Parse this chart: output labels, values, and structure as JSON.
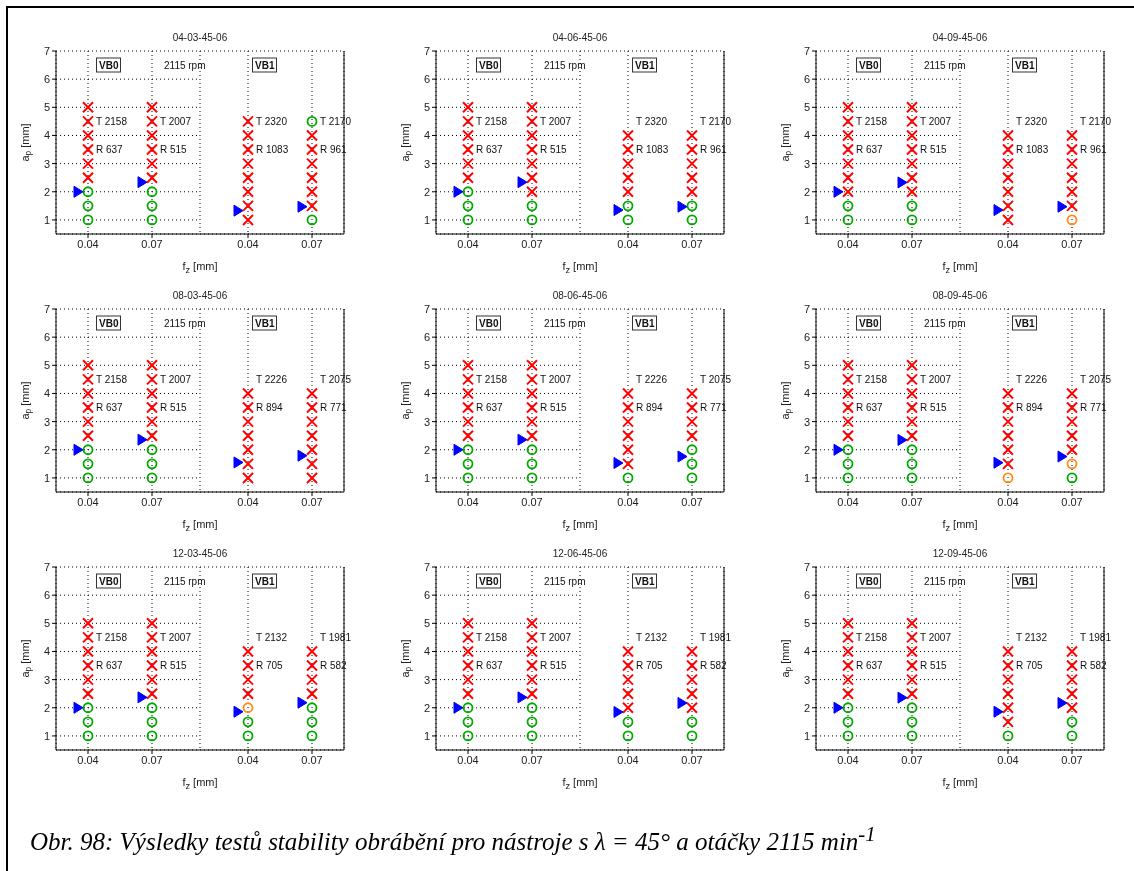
{
  "chart_data": [
    {
      "type": "scatter",
      "title": "04-03-45-06",
      "xlabel": "f$_{z}$ [mm]",
      "ylabel": "a$_{p}$ [mm]",
      "categories": [
        "0.04",
        "0.07"
      ],
      "ylim": [
        0.5,
        7
      ],
      "yticks": [
        1,
        2,
        3,
        4,
        5,
        6,
        7
      ],
      "grid": true,
      "series": [
        {
          "color": "#ff0000",
          "marker": "cross",
          "x": [
            "0.04",
            "0.04",
            "0.04",
            "0.04",
            "0.04",
            "0.04",
            "0.07",
            "0.07",
            "0.07",
            "0.07",
            "0.07",
            "0.07"
          ],
          "values": [
            2.5,
            3,
            3.5,
            4,
            4.5,
            5,
            2.5,
            3,
            3.5,
            4,
            4.5,
            5
          ]
        },
        {
          "color": "#00aa00",
          "marker": "circle",
          "x": [
            "0.04",
            "0.04",
            "0.04",
            "0.07",
            "0.07",
            "0.07"
          ],
          "values": [
            1,
            1.5,
            2,
            1,
            1.5,
            2
          ]
        },
        {
          "color": "#0000ff",
          "marker": "triangle",
          "x": [
            "0.04",
            "0.07"
          ],
          "values": [
            2,
            2.34
          ]
        }
      ],
      "annotations": [
        "VB0",
        "2115 rpm",
        "T 2158",
        "R 637",
        "T 2007",
        "R 515"
      ]
    },
    {
      "type": "scatter",
      "categories": [
        "0.04",
        "0.07"
      ],
      "ylim": [
        0.5,
        7
      ],
      "yticks": [
        1,
        2,
        3,
        4,
        5,
        6,
        7
      ],
      "tick_labels": "x",
      "grid": true,
      "series": [
        {
          "color": "#ff0000",
          "marker": "cross",
          "x": [
            "0.04",
            "0.04",
            "0.04",
            "0.04",
            "0.04",
            "0.04",
            "0.04",
            "0.04",
            "0.07",
            "0.07",
            "0.07",
            "0.07",
            "0.07",
            "0.07"
          ],
          "values": [
            1,
            1.5,
            2,
            2.5,
            3,
            3.5,
            4,
            4.5,
            1.5,
            2,
            2.5,
            3,
            3.5,
            4
          ]
        },
        {
          "color": "#00aa00",
          "marker": "circle",
          "x": [
            "0.07",
            "0.07"
          ],
          "values": [
            1,
            4.5
          ]
        },
        {
          "color": "#0000ff",
          "marker": "triangle",
          "x": [
            "0.04",
            "0.07"
          ],
          "values": [
            1.33,
            1.47
          ]
        }
      ],
      "annotations": [
        "VB1",
        "T 2320",
        "R 1083",
        "T 2170",
        "R 961"
      ]
    },
    {
      "type": "scatter",
      "title": "04-06-45-06",
      "xlabel": "f$_{z}$ [mm]",
      "ylabel": "a$_{p}$ [mm]",
      "categories": [
        "0.04",
        "0.07"
      ],
      "ylim": [
        0.5,
        7
      ],
      "yticks": [
        1,
        2,
        3,
        4,
        5,
        6,
        7
      ],
      "grid": true,
      "series": [
        {
          "color": "#ff0000",
          "marker": "cross",
          "x": [
            "0.04",
            "0.04",
            "0.04",
            "0.04",
            "0.04",
            "0.04",
            "0.07",
            "0.07",
            "0.07",
            "0.07",
            "0.07",
            "0.07",
            "0.07"
          ],
          "values": [
            2.5,
            3,
            3.5,
            4,
            4.5,
            5,
            2,
            2.5,
            3,
            3.5,
            4,
            4.5,
            5
          ]
        },
        {
          "color": "#00aa00",
          "marker": "circle",
          "x": [
            "0.04",
            "0.04",
            "0.04",
            "0.07",
            "0.07"
          ],
          "values": [
            1,
            1.5,
            2,
            1,
            1.5
          ]
        },
        {
          "color": "#0000ff",
          "marker": "triangle",
          "x": [
            "0.04",
            "0.07"
          ],
          "values": [
            2,
            2.34
          ]
        }
      ],
      "annotations": [
        "VB0",
        "2115 rpm",
        "T 2158",
        "R 637",
        "T 2007",
        "R 515"
      ]
    },
    {
      "type": "scatter",
      "categories": [
        "0.04",
        "0.07"
      ],
      "ylim": [
        0.5,
        7
      ],
      "yticks": [
        1,
        2,
        3,
        4,
        5,
        6,
        7
      ],
      "tick_labels": "x",
      "grid": true,
      "series": [
        {
          "color": "#ff0000",
          "marker": "cross",
          "x": [
            "0.04",
            "0.04",
            "0.04",
            "0.04",
            "0.04",
            "0.07",
            "0.07",
            "0.07",
            "0.07",
            "0.07"
          ],
          "values": [
            2,
            2.5,
            3,
            3.5,
            4,
            2,
            2.5,
            3,
            3.5,
            4
          ]
        },
        {
          "color": "#00aa00",
          "marker": "circle",
          "x": [
            "0.04",
            "0.04",
            "0.07",
            "0.07"
          ],
          "values": [
            1,
            1.5,
            1,
            1.5
          ]
        },
        {
          "color": "#0000ff",
          "marker": "triangle",
          "x": [
            "0.04",
            "0.07"
          ],
          "values": [
            1.35,
            1.47
          ]
        }
      ],
      "annotations": [
        "VB1",
        "T 2320",
        "R 1083",
        "T 2170",
        "R 961"
      ]
    },
    {
      "type": "scatter",
      "title": "04-09-45-06",
      "xlabel": "f$_{z}$ [mm]",
      "ylabel": "a$_{p}$ [mm]",
      "categories": [
        "0.04",
        "0.07"
      ],
      "ylim": [
        0.5,
        7
      ],
      "yticks": [
        1,
        2,
        3,
        4,
        5,
        6,
        7
      ],
      "grid": true,
      "series": [
        {
          "color": "#ff0000",
          "marker": "cross",
          "x": [
            "0.04",
            "0.04",
            "0.04",
            "0.04",
            "0.04",
            "0.04",
            "0.04",
            "0.07",
            "0.07",
            "0.07",
            "0.07",
            "0.07",
            "0.07",
            "0.07"
          ],
          "values": [
            2,
            2.5,
            3,
            3.5,
            4,
            4.5,
            5,
            2,
            2.5,
            3,
            3.5,
            4,
            4.5,
            5
          ]
        },
        {
          "color": "#00aa00",
          "marker": "circle",
          "x": [
            "0.04",
            "0.04",
            "0.07",
            "0.07"
          ],
          "values": [
            1,
            1.5,
            1,
            1.5
          ]
        },
        {
          "color": "#0000ff",
          "marker": "triangle",
          "x": [
            "0.04",
            "0.07"
          ],
          "values": [
            2,
            2.33
          ]
        }
      ],
      "annotations": [
        "VB0",
        "2115 rpm",
        "T 2158",
        "R 637",
        "T 2007",
        "R 515"
      ]
    },
    {
      "type": "scatter",
      "categories": [
        "0.04",
        "0.07"
      ],
      "ylim": [
        0.5,
        7
      ],
      "yticks": [
        1,
        2,
        3,
        4,
        5,
        6,
        7
      ],
      "tick_labels": "x",
      "grid": true,
      "series": [
        {
          "color": "#ff0000",
          "marker": "cross",
          "x": [
            "0.04",
            "0.04",
            "0.04",
            "0.04",
            "0.04",
            "0.04",
            "0.04",
            "0.07",
            "0.07",
            "0.07",
            "0.07",
            "0.07",
            "0.07"
          ],
          "values": [
            1,
            1.5,
            2,
            2.5,
            3,
            3.5,
            4,
            1.5,
            2,
            2.5,
            3,
            3.5,
            4
          ]
        },
        {
          "color": "#ff8c1a",
          "marker": "circle",
          "x": [
            "0.07"
          ],
          "values": [
            1
          ]
        },
        {
          "color": "#0000ff",
          "marker": "triangle",
          "x": [
            "0.04",
            "0.07"
          ],
          "values": [
            1.35,
            1.47
          ]
        }
      ],
      "annotations": [
        "VB1",
        "T 2320",
        "R 1083",
        "T 2170",
        "R 961"
      ]
    },
    {
      "type": "scatter",
      "title": "08-03-45-06",
      "xlabel": "f$_{z}$ [mm]",
      "ylabel": "a$_{p}$ [mm]",
      "categories": [
        "0.04",
        "0.07"
      ],
      "ylim": [
        0.5,
        7
      ],
      "yticks": [
        1,
        2,
        3,
        4,
        5,
        6,
        7
      ],
      "grid": true,
      "series": [
        {
          "color": "#ff0000",
          "marker": "cross",
          "x": [
            "0.04",
            "0.04",
            "0.04",
            "0.04",
            "0.04",
            "0.04",
            "0.07",
            "0.07",
            "0.07",
            "0.07",
            "0.07",
            "0.07"
          ],
          "values": [
            2.5,
            3,
            3.5,
            4,
            4.5,
            5,
            2.5,
            3,
            3.5,
            4,
            4.5,
            5
          ]
        },
        {
          "color": "#00aa00",
          "marker": "circle",
          "x": [
            "0.04",
            "0.04",
            "0.04",
            "0.07",
            "0.07",
            "0.07"
          ],
          "values": [
            1,
            1.5,
            2,
            1,
            1.5,
            2
          ]
        },
        {
          "color": "#0000ff",
          "marker": "triangle",
          "x": [
            "0.04",
            "0.07"
          ],
          "values": [
            2,
            2.36
          ]
        }
      ],
      "annotations": [
        "VB0",
        "2115 rpm",
        "T 2158",
        "R 637",
        "T 2007",
        "R 515"
      ]
    },
    {
      "type": "scatter",
      "categories": [
        "0.04",
        "0.07"
      ],
      "ylim": [
        0.5,
        7
      ],
      "yticks": [
        1,
        2,
        3,
        4,
        5,
        6,
        7
      ],
      "tick_labels": "x",
      "grid": true,
      "series": [
        {
          "color": "#ff0000",
          "marker": "cross",
          "x": [
            "0.04",
            "0.04",
            "0.04",
            "0.04",
            "0.04",
            "0.04",
            "0.04",
            "0.07",
            "0.07",
            "0.07",
            "0.07",
            "0.07",
            "0.07",
            "0.07"
          ],
          "values": [
            1,
            1.5,
            2,
            2.5,
            3,
            3.5,
            4,
            1,
            1.5,
            2,
            2.5,
            3,
            3.5,
            4
          ]
        },
        {
          "color": "#0000ff",
          "marker": "triangle",
          "x": [
            "0.04",
            "0.07"
          ],
          "values": [
            1.55,
            1.79
          ]
        }
      ],
      "annotations": [
        "VB1",
        "T 2226",
        "R 894",
        "T 2075",
        "R 771"
      ]
    },
    {
      "type": "scatter",
      "title": "08-06-45-06",
      "xlabel": "f$_{z}$ [mm]",
      "ylabel": "a$_{p}$ [mm]",
      "categories": [
        "0.04",
        "0.07"
      ],
      "ylim": [
        0.5,
        7
      ],
      "yticks": [
        1,
        2,
        3,
        4,
        5,
        6,
        7
      ],
      "grid": true,
      "series": [
        {
          "color": "#ff0000",
          "marker": "cross",
          "x": [
            "0.04",
            "0.04",
            "0.04",
            "0.04",
            "0.04",
            "0.04",
            "0.07",
            "0.07",
            "0.07",
            "0.07",
            "0.07",
            "0.07"
          ],
          "values": [
            2.5,
            3,
            3.5,
            4,
            4.5,
            5,
            2.5,
            3,
            3.5,
            4,
            4.5,
            5
          ]
        },
        {
          "color": "#00aa00",
          "marker": "circle",
          "x": [
            "0.04",
            "0.04",
            "0.04",
            "0.07",
            "0.07",
            "0.07"
          ],
          "values": [
            1,
            1.5,
            2,
            1,
            1.5,
            2
          ]
        },
        {
          "color": "#0000ff",
          "marker": "triangle",
          "x": [
            "0.04",
            "0.07"
          ],
          "values": [
            2,
            2.36
          ]
        }
      ],
      "annotations": [
        "VB0",
        "2115 rpm",
        "T 2158",
        "R 637",
        "T 2007",
        "R 515"
      ]
    },
    {
      "type": "scatter",
      "categories": [
        "0.04",
        "0.07"
      ],
      "ylim": [
        0.5,
        7
      ],
      "yticks": [
        1,
        2,
        3,
        4,
        5,
        6,
        7
      ],
      "tick_labels": "x",
      "grid": true,
      "series": [
        {
          "color": "#ff0000",
          "marker": "cross",
          "x": [
            "0.04",
            "0.04",
            "0.04",
            "0.04",
            "0.04",
            "0.04",
            "0.07",
            "0.07",
            "0.07",
            "0.07"
          ],
          "values": [
            1.5,
            2,
            2.5,
            3,
            3.5,
            4,
            2.5,
            3,
            3.5,
            4
          ]
        },
        {
          "color": "#00aa00",
          "marker": "circle",
          "x": [
            "0.04",
            "0.07",
            "0.07",
            "0.07"
          ],
          "values": [
            1,
            1,
            1.5,
            2
          ]
        },
        {
          "color": "#0000ff",
          "marker": "triangle",
          "x": [
            "0.04",
            "0.07"
          ],
          "values": [
            1.53,
            1.76
          ]
        }
      ],
      "annotations": [
        "VB1",
        "T 2226",
        "R 894",
        "T 2075",
        "R 771"
      ]
    },
    {
      "type": "scatter",
      "title": "08-09-45-06",
      "xlabel": "f$_{z}$ [mm]",
      "ylabel": "a$_{p}$ [mm]",
      "categories": [
        "0.04",
        "0.07"
      ],
      "ylim": [
        0.5,
        7
      ],
      "yticks": [
        1,
        2,
        3,
        4,
        5,
        6,
        7
      ],
      "grid": true,
      "series": [
        {
          "color": "#ff0000",
          "marker": "cross",
          "x": [
            "0.04",
            "0.04",
            "0.04",
            "0.04",
            "0.04",
            "0.04",
            "0.07",
            "0.07",
            "0.07",
            "0.07",
            "0.07",
            "0.07"
          ],
          "values": [
            2.5,
            3,
            3.5,
            4,
            4.5,
            5,
            2.5,
            3,
            3.5,
            4,
            4.5,
            5
          ]
        },
        {
          "color": "#00aa00",
          "marker": "circle",
          "x": [
            "0.04",
            "0.04",
            "0.04",
            "0.07",
            "0.07",
            "0.07"
          ],
          "values": [
            1,
            1.5,
            2,
            1,
            1.5,
            2
          ]
        },
        {
          "color": "#0000ff",
          "marker": "triangle",
          "x": [
            "0.04",
            "0.07"
          ],
          "values": [
            2,
            2.35
          ]
        }
      ],
      "annotations": [
        "VB0",
        "2115 rpm",
        "T 2158",
        "R 637",
        "T 2007",
        "R 515"
      ]
    },
    {
      "type": "scatter",
      "categories": [
        "0.04",
        "0.07"
      ],
      "ylim": [
        0.5,
        7
      ],
      "yticks": [
        1,
        2,
        3,
        4,
        5,
        6,
        7
      ],
      "tick_labels": "x",
      "grid": true,
      "series": [
        {
          "color": "#ff0000",
          "marker": "cross",
          "x": [
            "0.04",
            "0.04",
            "0.04",
            "0.04",
            "0.04",
            "0.04",
            "0.07",
            "0.07",
            "0.07",
            "0.07",
            "0.07"
          ],
          "values": [
            1.5,
            2,
            2.5,
            3,
            3.5,
            4,
            2,
            2.5,
            3,
            3.5,
            4
          ]
        },
        {
          "color": "#00aa00",
          "marker": "circle",
          "x": [
            "0.07"
          ],
          "values": [
            1
          ]
        },
        {
          "color": "#ff8c1a",
          "marker": "circle",
          "x": [
            "0.04",
            "0.07"
          ],
          "values": [
            1,
            1.5
          ]
        },
        {
          "color": "#0000ff",
          "marker": "triangle",
          "x": [
            "0.04",
            "0.07"
          ],
          "values": [
            1.54,
            1.76
          ]
        }
      ],
      "annotations": [
        "VB1",
        "T 2226",
        "R 894",
        "T 2075",
        "R 771"
      ]
    },
    {
      "type": "scatter",
      "title": "12-03-45-06",
      "xlabel": "f$_{z}$ [mm]",
      "ylabel": "a$_{p}$ [mm]",
      "categories": [
        "0.04",
        "0.07"
      ],
      "ylim": [
        0.5,
        7
      ],
      "yticks": [
        1,
        2,
        3,
        4,
        5,
        6,
        7
      ],
      "grid": true,
      "series": [
        {
          "color": "#ff0000",
          "marker": "cross",
          "x": [
            "0.04",
            "0.04",
            "0.04",
            "0.04",
            "0.04",
            "0.04",
            "0.07",
            "0.07",
            "0.07",
            "0.07",
            "0.07",
            "0.07"
          ],
          "values": [
            2.5,
            3,
            3.5,
            4,
            4.5,
            5,
            2.5,
            3,
            3.5,
            4,
            4.5,
            5
          ]
        },
        {
          "color": "#00aa00",
          "marker": "circle",
          "x": [
            "0.04",
            "0.04",
            "0.04",
            "0.07",
            "0.07",
            "0.07"
          ],
          "values": [
            1,
            1.5,
            2,
            1,
            1.5,
            2
          ]
        },
        {
          "color": "#0000ff",
          "marker": "triangle",
          "x": [
            "0.04",
            "0.07"
          ],
          "values": [
            2,
            2.37
          ]
        }
      ],
      "annotations": [
        "VB0",
        "2115 rpm",
        "T 2158",
        "R 637",
        "T 2007",
        "R 515"
      ]
    },
    {
      "type": "scatter",
      "categories": [
        "0.04",
        "0.07"
      ],
      "ylim": [
        0.5,
        7
      ],
      "yticks": [
        1,
        2,
        3,
        4,
        5,
        6,
        7
      ],
      "tick_labels": "x",
      "grid": true,
      "series": [
        {
          "color": "#ff0000",
          "marker": "cross",
          "x": [
            "0.04",
            "0.04",
            "0.04",
            "0.04",
            "0.07",
            "0.07",
            "0.07",
            "0.07"
          ],
          "values": [
            2.5,
            3,
            3.5,
            4,
            2.5,
            3,
            3.5,
            4
          ]
        },
        {
          "color": "#00aa00",
          "marker": "circle",
          "x": [
            "0.04",
            "0.04",
            "0.07",
            "0.07",
            "0.07"
          ],
          "values": [
            1,
            1.5,
            1,
            1.5,
            2
          ]
        },
        {
          "color": "#ff8c1a",
          "marker": "circle",
          "x": [
            "0.04"
          ],
          "values": [
            2
          ]
        },
        {
          "color": "#0000ff",
          "marker": "triangle",
          "x": [
            "0.04",
            "0.07"
          ],
          "values": [
            1.86,
            2.18
          ]
        }
      ],
      "annotations": [
        "VB1",
        "T 2132",
        "R 705",
        "T 1981",
        "R 582"
      ]
    },
    {
      "type": "scatter",
      "title": "12-06-45-06",
      "xlabel": "f$_{z}$ [mm]",
      "ylabel": "a$_{p}$ [mm]",
      "categories": [
        "0.04",
        "0.07"
      ],
      "ylim": [
        0.5,
        7
      ],
      "yticks": [
        1,
        2,
        3,
        4,
        5,
        6,
        7
      ],
      "grid": true,
      "series": [
        {
          "color": "#ff0000",
          "marker": "cross",
          "x": [
            "0.04",
            "0.04",
            "0.04",
            "0.04",
            "0.04",
            "0.04",
            "0.07",
            "0.07",
            "0.07",
            "0.07",
            "0.07",
            "0.07"
          ],
          "values": [
            2.5,
            3,
            3.5,
            4,
            4.5,
            5,
            2.5,
            3,
            3.5,
            4,
            4.5,
            5
          ]
        },
        {
          "color": "#00aa00",
          "marker": "circle",
          "x": [
            "0.04",
            "0.04",
            "0.04",
            "0.07",
            "0.07",
            "0.07"
          ],
          "values": [
            1,
            1.5,
            2,
            1,
            1.5,
            2
          ]
        },
        {
          "color": "#0000ff",
          "marker": "triangle",
          "x": [
            "0.04",
            "0.07"
          ],
          "values": [
            2,
            2.37
          ]
        }
      ],
      "annotations": [
        "VB0",
        "2115 rpm",
        "T 2158",
        "R 637",
        "T 2007",
        "R 515"
      ]
    },
    {
      "type": "scatter",
      "categories": [
        "0.04",
        "0.07"
      ],
      "ylim": [
        0.5,
        7
      ],
      "yticks": [
        1,
        2,
        3,
        4,
        5,
        6,
        7
      ],
      "tick_labels": "x",
      "grid": true,
      "series": [
        {
          "color": "#ff0000",
          "marker": "cross",
          "x": [
            "0.04",
            "0.04",
            "0.04",
            "0.04",
            "0.04",
            "0.07",
            "0.07",
            "0.07",
            "0.07",
            "0.07"
          ],
          "values": [
            2,
            2.5,
            3,
            3.5,
            4,
            2,
            2.5,
            3,
            3.5,
            4
          ]
        },
        {
          "color": "#00aa00",
          "marker": "circle",
          "x": [
            "0.04",
            "0.04",
            "0.07",
            "0.07"
          ],
          "values": [
            1,
            1.5,
            1,
            1.5
          ]
        },
        {
          "color": "#0000ff",
          "marker": "triangle",
          "x": [
            "0.04",
            "0.07"
          ],
          "values": [
            1.85,
            2.17
          ]
        }
      ],
      "annotations": [
        "VB1",
        "T 2132",
        "R 705",
        "T 1981",
        "R 582"
      ]
    },
    {
      "type": "scatter",
      "title": "12-09-45-06",
      "xlabel": "f$_{z}$ [mm]",
      "ylabel": "a$_{p}$ [mm]",
      "categories": [
        "0.04",
        "0.07"
      ],
      "ylim": [
        0.5,
        7
      ],
      "yticks": [
        1,
        2,
        3,
        4,
        5,
        6,
        7
      ],
      "grid": true,
      "series": [
        {
          "color": "#ff0000",
          "marker": "cross",
          "x": [
            "0.04",
            "0.04",
            "0.04",
            "0.04",
            "0.04",
            "0.04",
            "0.07",
            "0.07",
            "0.07",
            "0.07",
            "0.07",
            "0.07"
          ],
          "values": [
            2.5,
            3,
            3.5,
            4,
            4.5,
            5,
            2.5,
            3,
            3.5,
            4,
            4.5,
            5
          ]
        },
        {
          "color": "#00aa00",
          "marker": "circle",
          "x": [
            "0.04",
            "0.04",
            "0.04",
            "0.07",
            "0.07",
            "0.07"
          ],
          "values": [
            1,
            1.5,
            2,
            1,
            1.5,
            2
          ]
        },
        {
          "color": "#0000ff",
          "marker": "triangle",
          "x": [
            "0.04",
            "0.07"
          ],
          "values": [
            2,
            2.36
          ]
        }
      ],
      "annotations": [
        "VB0",
        "2115 rpm",
        "T 2158",
        "R 637",
        "T 2007",
        "R 515"
      ]
    },
    {
      "type": "scatter",
      "categories": [
        "0.04",
        "0.07"
      ],
      "ylim": [
        0.5,
        7
      ],
      "yticks": [
        1,
        2,
        3,
        4,
        5,
        6,
        7
      ],
      "tick_labels": "x",
      "grid": true,
      "series": [
        {
          "color": "#ff0000",
          "marker": "cross",
          "x": [
            "0.04",
            "0.04",
            "0.04",
            "0.04",
            "0.04",
            "0.04",
            "0.07",
            "0.07",
            "0.07",
            "0.07",
            "0.07"
          ],
          "values": [
            1.5,
            2,
            2.5,
            3,
            3.5,
            4,
            2,
            2.5,
            3,
            3.5,
            4
          ]
        },
        {
          "color": "#00aa00",
          "marker": "circle",
          "x": [
            "0.04",
            "0.07",
            "0.07"
          ],
          "values": [
            1,
            1,
            1.5
          ]
        },
        {
          "color": "#0000ff",
          "marker": "triangle",
          "x": [
            "0.04",
            "0.07"
          ],
          "values": [
            1.86,
            2.17
          ]
        }
      ],
      "annotations": [
        "VB1",
        "T 2132",
        "R 705",
        "T 1981",
        "R 582",
        "Obr. 98: Výsledky testů stability obrábění pro nástroje s λ = 45° a otáčky 2115 min$^{-1}$"
      ]
    }
  ]
}
